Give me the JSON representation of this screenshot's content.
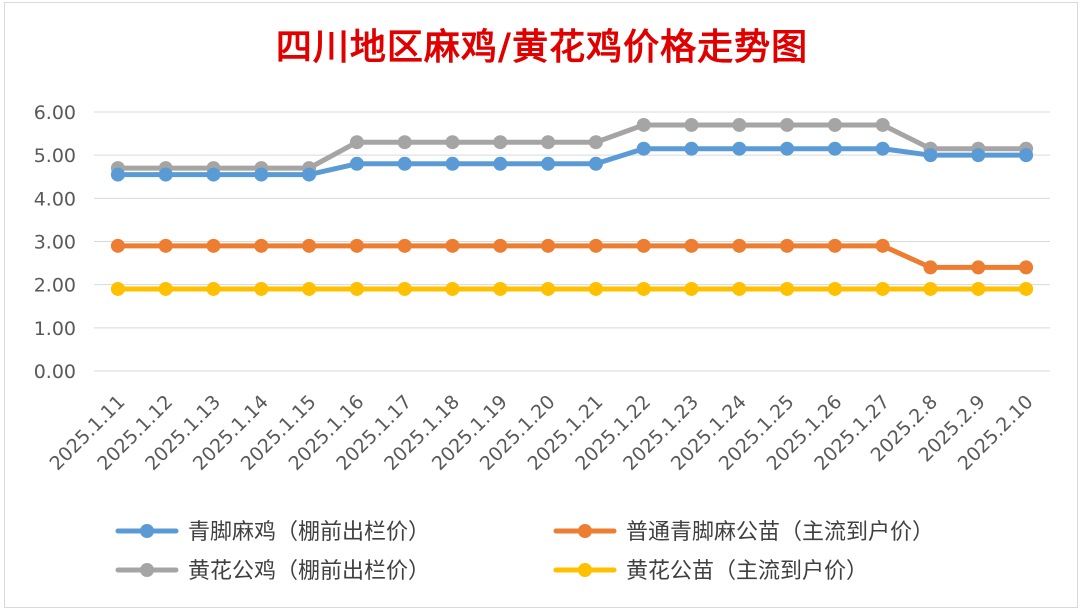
{
  "chart_data": {
    "type": "line",
    "title": "四川地区麻鸡/黄花鸡价格走势图",
    "xlabel": "",
    "ylabel": "",
    "ylim": [
      0,
      6
    ],
    "yticks": [
      "0.00",
      "1.00",
      "2.00",
      "3.00",
      "4.00",
      "5.00",
      "6.00"
    ],
    "grid": true,
    "legend_position": "bottom",
    "categories": [
      "2025.1.11",
      "2025.1.12",
      "2025.1.13",
      "2025.1.14",
      "2025.1.15",
      "2025.1.16",
      "2025.1.17",
      "2025.1.18",
      "2025.1.19",
      "2025.1.20",
      "2025.1.21",
      "2025.1.22",
      "2025.1.23",
      "2025.1.24",
      "2025.1.25",
      "2025.1.26",
      "2025.1.27",
      "2025.2.8",
      "2025.2.9",
      "2025.2.10"
    ],
    "series": [
      {
        "name": "青脚麻鸡（棚前出栏价）",
        "color": "#5b9bd5",
        "values": [
          4.55,
          4.55,
          4.55,
          4.55,
          4.55,
          4.8,
          4.8,
          4.8,
          4.8,
          4.8,
          4.8,
          5.15,
          5.15,
          5.15,
          5.15,
          5.15,
          5.15,
          5.0,
          5.0,
          5.0
        ]
      },
      {
        "name": "普通青脚麻公苗（主流到户价）",
        "color": "#ed7d31",
        "values": [
          2.9,
          2.9,
          2.9,
          2.9,
          2.9,
          2.9,
          2.9,
          2.9,
          2.9,
          2.9,
          2.9,
          2.9,
          2.9,
          2.9,
          2.9,
          2.9,
          2.9,
          2.4,
          2.4,
          2.4
        ]
      },
      {
        "name": "黄花公鸡（棚前出栏价）",
        "color": "#a5a5a5",
        "values": [
          4.7,
          4.7,
          4.7,
          4.7,
          4.7,
          5.3,
          5.3,
          5.3,
          5.3,
          5.3,
          5.3,
          5.7,
          5.7,
          5.7,
          5.7,
          5.7,
          5.7,
          5.15,
          5.15,
          5.15
        ]
      },
      {
        "name": "黄花公苗（主流到户价）",
        "color": "#ffc000",
        "values": [
          1.9,
          1.9,
          1.9,
          1.9,
          1.9,
          1.9,
          1.9,
          1.9,
          1.9,
          1.9,
          1.9,
          1.9,
          1.9,
          1.9,
          1.9,
          1.9,
          1.9,
          1.9,
          1.9,
          1.9
        ]
      }
    ]
  }
}
